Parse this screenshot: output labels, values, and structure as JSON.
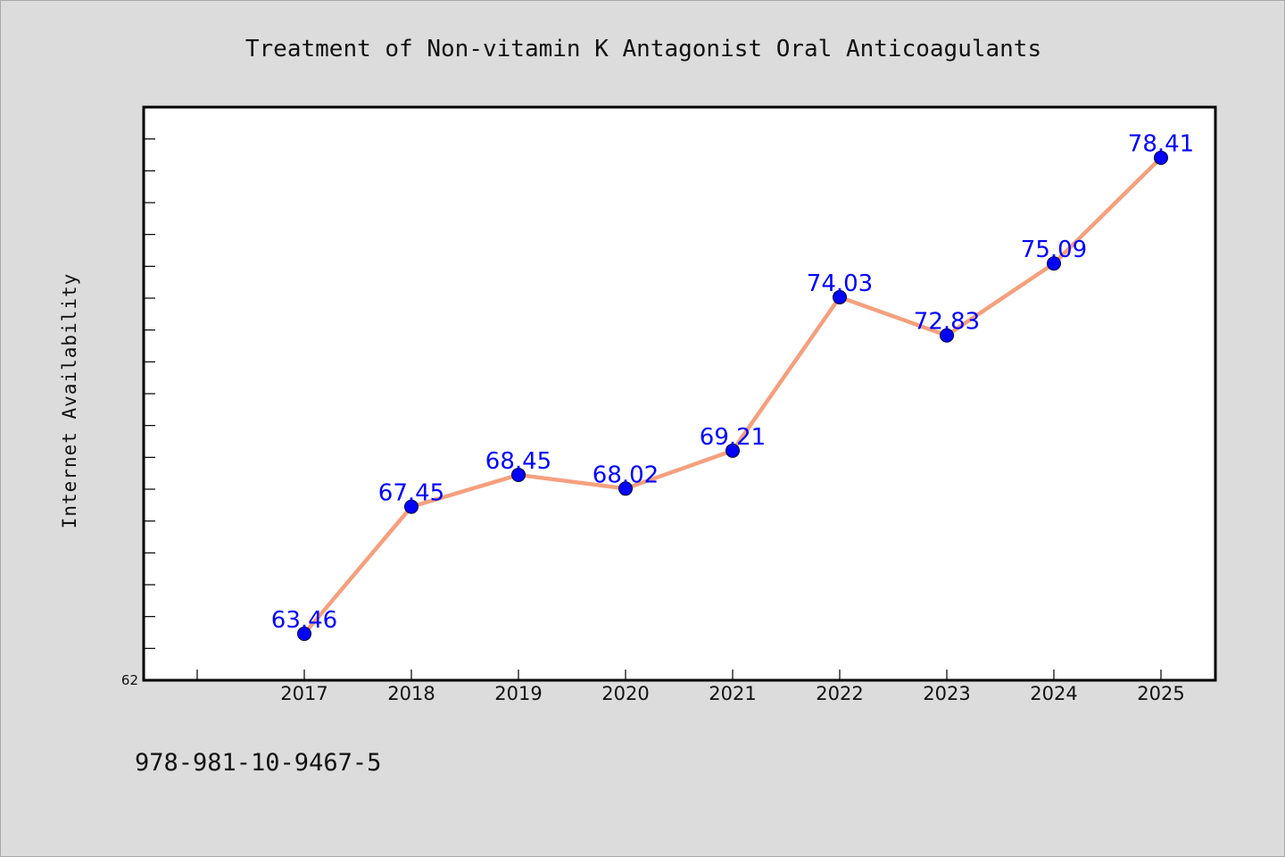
{
  "chart_data": {
    "type": "line",
    "title": "Treatment of Non-vitamin K Antagonist Oral Anticoagulants",
    "xlabel": "",
    "ylabel": "Internet Availability",
    "categories": [
      "2017",
      "2018",
      "2019",
      "2020",
      "2021",
      "2022",
      "2023",
      "2024",
      "2025"
    ],
    "series": [
      {
        "values": [
          63.46,
          67.45,
          68.45,
          68.02,
          69.21,
          74.03,
          72.83,
          75.09,
          78.41
        ],
        "labels": [
          "63.46",
          "67.45",
          "68.45",
          "68.02",
          "69.21",
          "74.03",
          "72.83",
          "75.09",
          "78.41"
        ],
        "line_color": "#f4a07e",
        "marker_color": "#0000ff"
      }
    ],
    "ylim": [
      62,
      80
    ],
    "ytick_labels": [
      "62"
    ],
    "grid": false,
    "legend": "none"
  },
  "footer": {
    "text": "978-981-10-9467-5"
  },
  "colors": {
    "background": "#dcdcdc",
    "plot_background": "#ffffff",
    "line": "#f4a07e",
    "marker": "#0000ff",
    "data_label": "#0000ff"
  }
}
